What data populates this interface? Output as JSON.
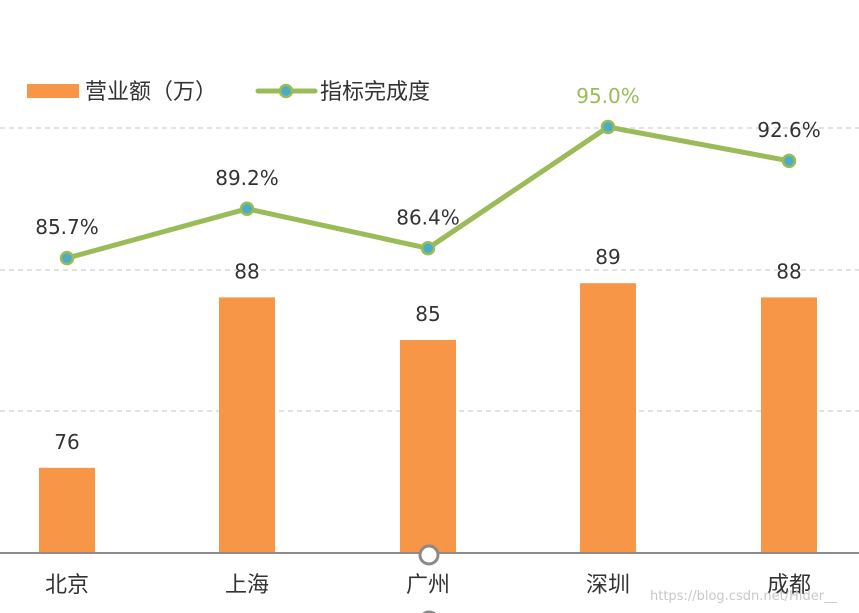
{
  "chart_data": {
    "type": "bar",
    "categories": [
      "北京",
      "上海",
      "广州",
      "深圳",
      "成都"
    ],
    "series": [
      {
        "name": "营业额（万）",
        "type": "bar",
        "values": [
          76,
          88,
          85,
          89,
          88
        ],
        "color": "#f79646"
      },
      {
        "name": "指标完成度",
        "type": "line",
        "values": [
          85.7,
          89.2,
          86.4,
          95.0,
          92.6
        ],
        "labels": [
          "85.7%",
          "89.2%",
          "86.4%",
          "95.0%",
          "92.6%"
        ],
        "color": "#9bbb59",
        "marker_color": "#4bacc6",
        "highlight_index": 3
      }
    ],
    "legend_position": "top-left",
    "grid": true,
    "y_axis_visible": false
  },
  "watermark": "https://blog.csdn.net/Hider__"
}
